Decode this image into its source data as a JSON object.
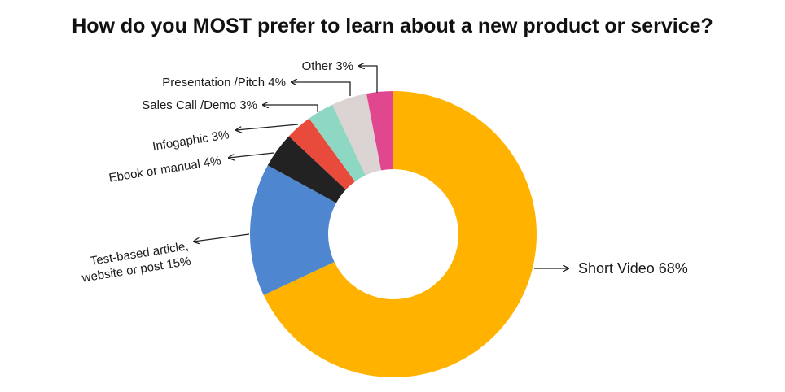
{
  "chart_data": {
    "type": "pie",
    "variant": "donut",
    "title": "How do you MOST prefer to learn about a new product or service?",
    "start": "12 o'clock, clockwise",
    "slices": [
      {
        "label": "Short Video",
        "value": 68,
        "display": "Short Video 68%",
        "color": "#FFB300"
      },
      {
        "label": "Test-based article, website or post",
        "value": 15,
        "display": [
          "Test-based article,",
          "website or post 15%"
        ],
        "color": "#4E86CF"
      },
      {
        "label": "Ebook or manual",
        "value": 4,
        "display": "Ebook or manual 4%",
        "color": "#222222"
      },
      {
        "label": "Infogaphic",
        "value": 3,
        "display": "Infogaphic 3%",
        "color": "#E84A3C"
      },
      {
        "label": "Sales Call /Demo",
        "value": 3,
        "display": "Sales Call /Demo 3%",
        "color": "#8ED7C2"
      },
      {
        "label": "Presentation /Pitch",
        "value": 4,
        "display": "Presentation /Pitch 4%",
        "color": "#DCD3D3"
      },
      {
        "label": "Other",
        "value": 3,
        "display": "Other 3%",
        "color": "#E0478F"
      }
    ]
  }
}
